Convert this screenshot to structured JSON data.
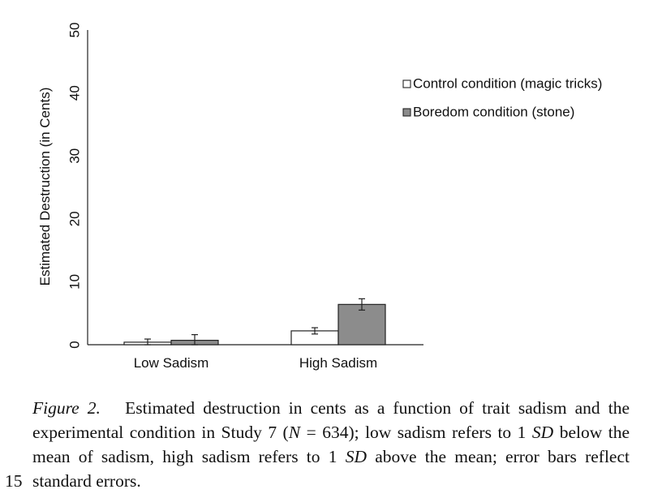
{
  "chart_data": {
    "type": "bar",
    "ylabel": "Estimated Destruction (in Cents)",
    "ylim": [
      0,
      50
    ],
    "yticks": [
      "0",
      "10",
      "20",
      "30",
      "40",
      "50"
    ],
    "categories": [
      "Low Sadism",
      "High Sadism"
    ],
    "series": [
      {
        "name": "Control condition  (magic tricks)",
        "values": [
          0.4,
          2.2
        ],
        "errors": [
          0.5,
          0.5
        ],
        "color": "#ffffff"
      },
      {
        "name": "Boredom condition (stone)",
        "values": [
          0.7,
          6.4
        ],
        "errors": [
          0.9,
          0.9
        ],
        "color": "#8c8c8c"
      }
    ],
    "legend_position": "top-right",
    "grid": false
  },
  "caption": {
    "figure_label": "Figure 2.",
    "text_a": "Estimated destruction in cents as a function of trait sadism and the experimental condition in Study 7 (",
    "n_symbol": "N",
    "text_b": " = 634); low sadism refers to 1 ",
    "sd_1": "SD",
    "text_c": " below the mean of sadism, high sadism refers to 1 ",
    "sd_2": "SD",
    "text_d": " above the mean; error bars reflect standard errors."
  },
  "line_number": "15"
}
